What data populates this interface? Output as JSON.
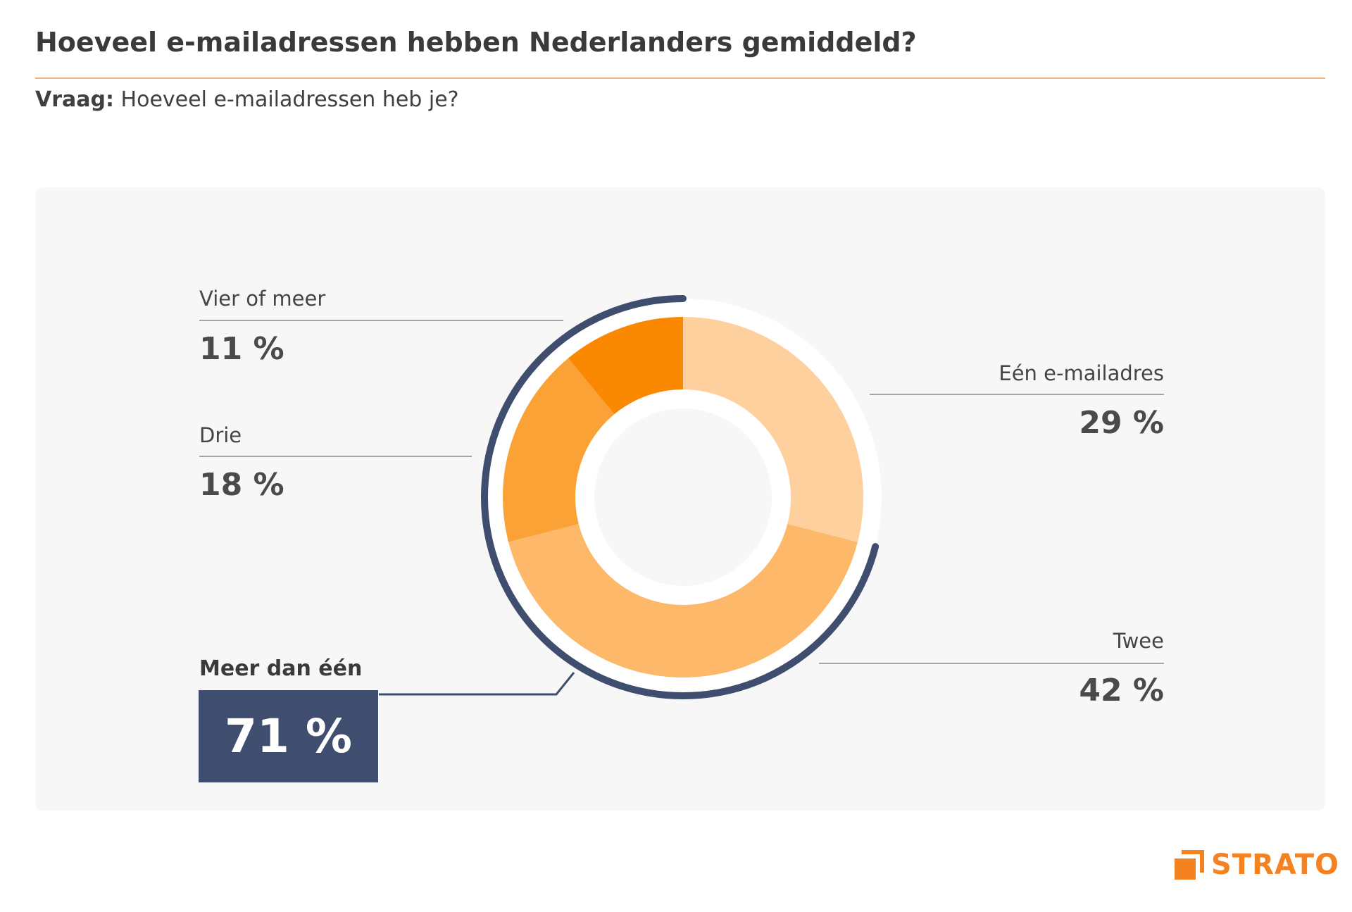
{
  "header": {
    "title": "Hoeveel e-mailadressen hebben Nederlanders gemiddeld?",
    "question_label": "Vraag:",
    "question_text": "Hoeveel e-mailadressen heb je?"
  },
  "chart_data": {
    "type": "pie",
    "variant": "donut",
    "categories": [
      "Eén e-mailadres",
      "Twee",
      "Drie",
      "Vier of meer"
    ],
    "values": [
      29,
      42,
      18,
      11
    ],
    "value_labels": [
      "29 %",
      "42 %",
      "18 %",
      "11 %"
    ],
    "colors": [
      "#fdd09e",
      "#fdb86a",
      "#fba236",
      "#fa8800"
    ],
    "highlight": {
      "label": "Meer dan één",
      "value": 71,
      "value_label": "71 %",
      "color": "#3f4e6e"
    }
  },
  "brand": {
    "name": "STRATO",
    "color": "#f58220",
    "icon": "strato-logo-icon"
  }
}
